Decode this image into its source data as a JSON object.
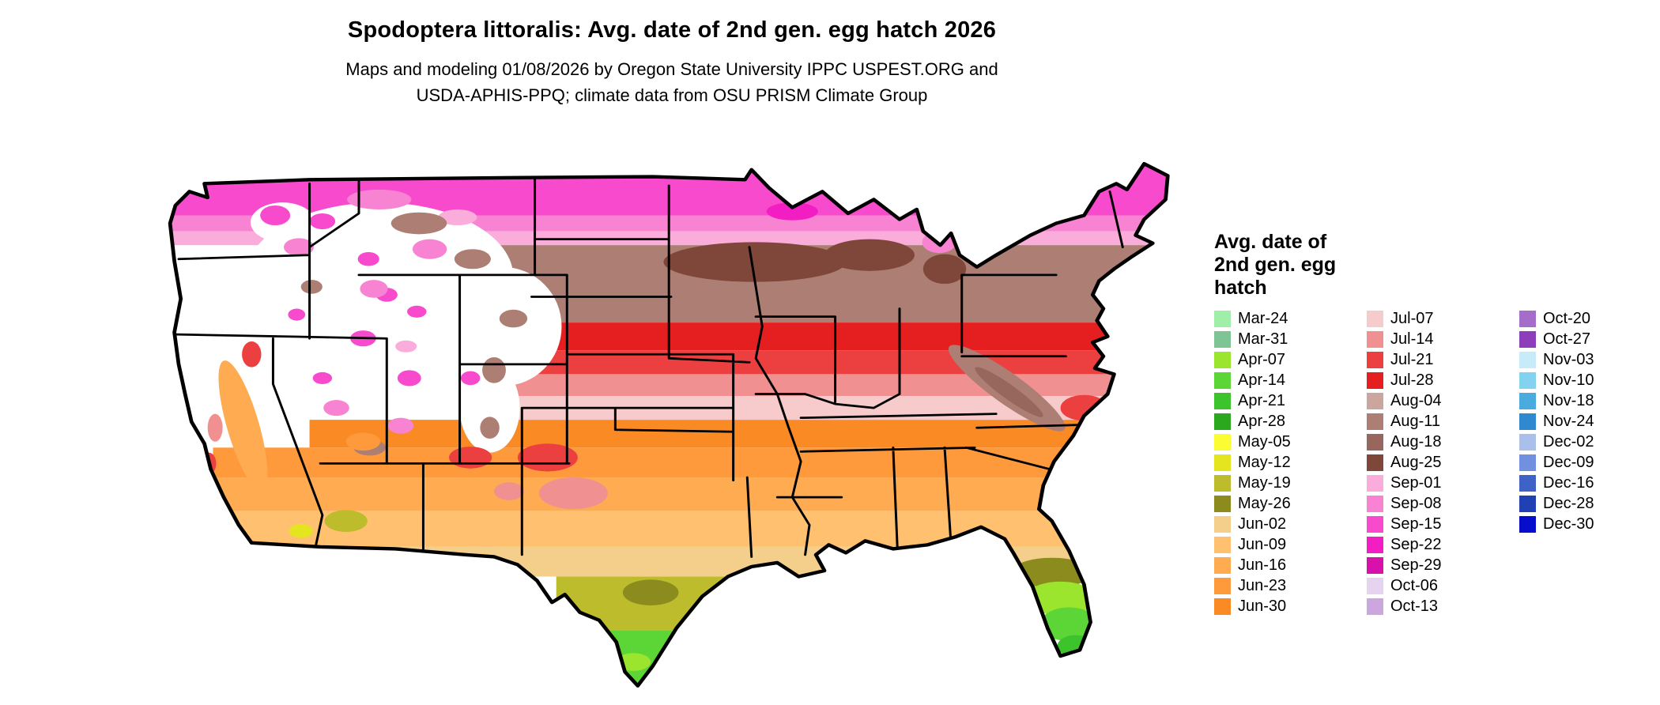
{
  "title": "Spodoptera littoralis: Avg. date of 2nd gen. egg hatch 2026",
  "subtitle_lines": [
    "Maps and modeling 01/08/2026 by Oregon State University IPPC USPEST.ORG and",
    "USDA-APHIS-PPQ; climate data from OSU PRISM Climate Group"
  ],
  "legend": {
    "title_lines": [
      "Avg. date of",
      "2nd gen. egg",
      "hatch"
    ],
    "columns": [
      [
        "Mar-24",
        "Mar-31",
        "Apr-07",
        "Apr-14",
        "Apr-21",
        "Apr-28",
        "May-05",
        "May-12",
        "May-19",
        "May-26",
        "Jun-02",
        "Jun-09",
        "Jun-16",
        "Jun-23",
        "Jun-30"
      ],
      [
        "Jul-07",
        "Jul-14",
        "Jul-21",
        "Jul-28",
        "Aug-04",
        "Aug-11",
        "Aug-18",
        "Aug-25",
        "Sep-01",
        "Sep-08",
        "Sep-15",
        "Sep-22",
        "Sep-29",
        "Oct-06",
        "Oct-13"
      ],
      [
        "Oct-20",
        "Oct-27",
        "Nov-03",
        "Nov-10",
        "Nov-18",
        "Nov-24",
        "Dec-02",
        "Dec-09",
        "Dec-16",
        "Dec-28",
        "Dec-30"
      ]
    ]
  },
  "colors_by_date": {
    "Mar-24": "#9FEFA9",
    "Mar-31": "#7FC495",
    "Apr-07": "#9BE52F",
    "Apr-14": "#5BD636",
    "Apr-21": "#3DC42C",
    "Apr-28": "#2BA81E",
    "May-05": "#FCFC33",
    "May-12": "#E4E41F",
    "May-19": "#BCBC2D",
    "May-26": "#8C8C1E",
    "Jun-02": "#F4CF8B",
    "Jun-09": "#FFC070",
    "Jun-16": "#FFAB52",
    "Jun-23": "#FF9A3C",
    "Jun-30": "#FA8A24",
    "Jul-07": "#F7CBCB",
    "Jul-14": "#F09090",
    "Jul-21": "#EC4040",
    "Jul-28": "#E51F1F",
    "Aug-04": "#CBA69E",
    "Aug-11": "#AC7E74",
    "Aug-18": "#97675D",
    "Aug-25": "#7F463A",
    "Sep-01": "#FAACDA",
    "Sep-08": "#F883D2",
    "Sep-15": "#F74ACD",
    "Sep-22": "#F21EC3",
    "Sep-29": "#D811AB",
    "Oct-06": "#E5D3F0",
    "Oct-13": "#CCA6DF",
    "Oct-20": "#A56DC9",
    "Oct-27": "#8D3FBB",
    "Nov-03": "#C5ECF8",
    "Nov-10": "#83D2EF",
    "Nov-18": "#4AABDF",
    "Nov-24": "#3089CE",
    "Dec-02": "#ABBFEB",
    "Dec-09": "#7190DF",
    "Dec-16": "#3F62C6",
    "Dec-28": "#2041B4",
    "Dec-30": "#060ECB"
  },
  "map": {
    "na_color": "#FFFFFF",
    "border_color": "#000000"
  }
}
